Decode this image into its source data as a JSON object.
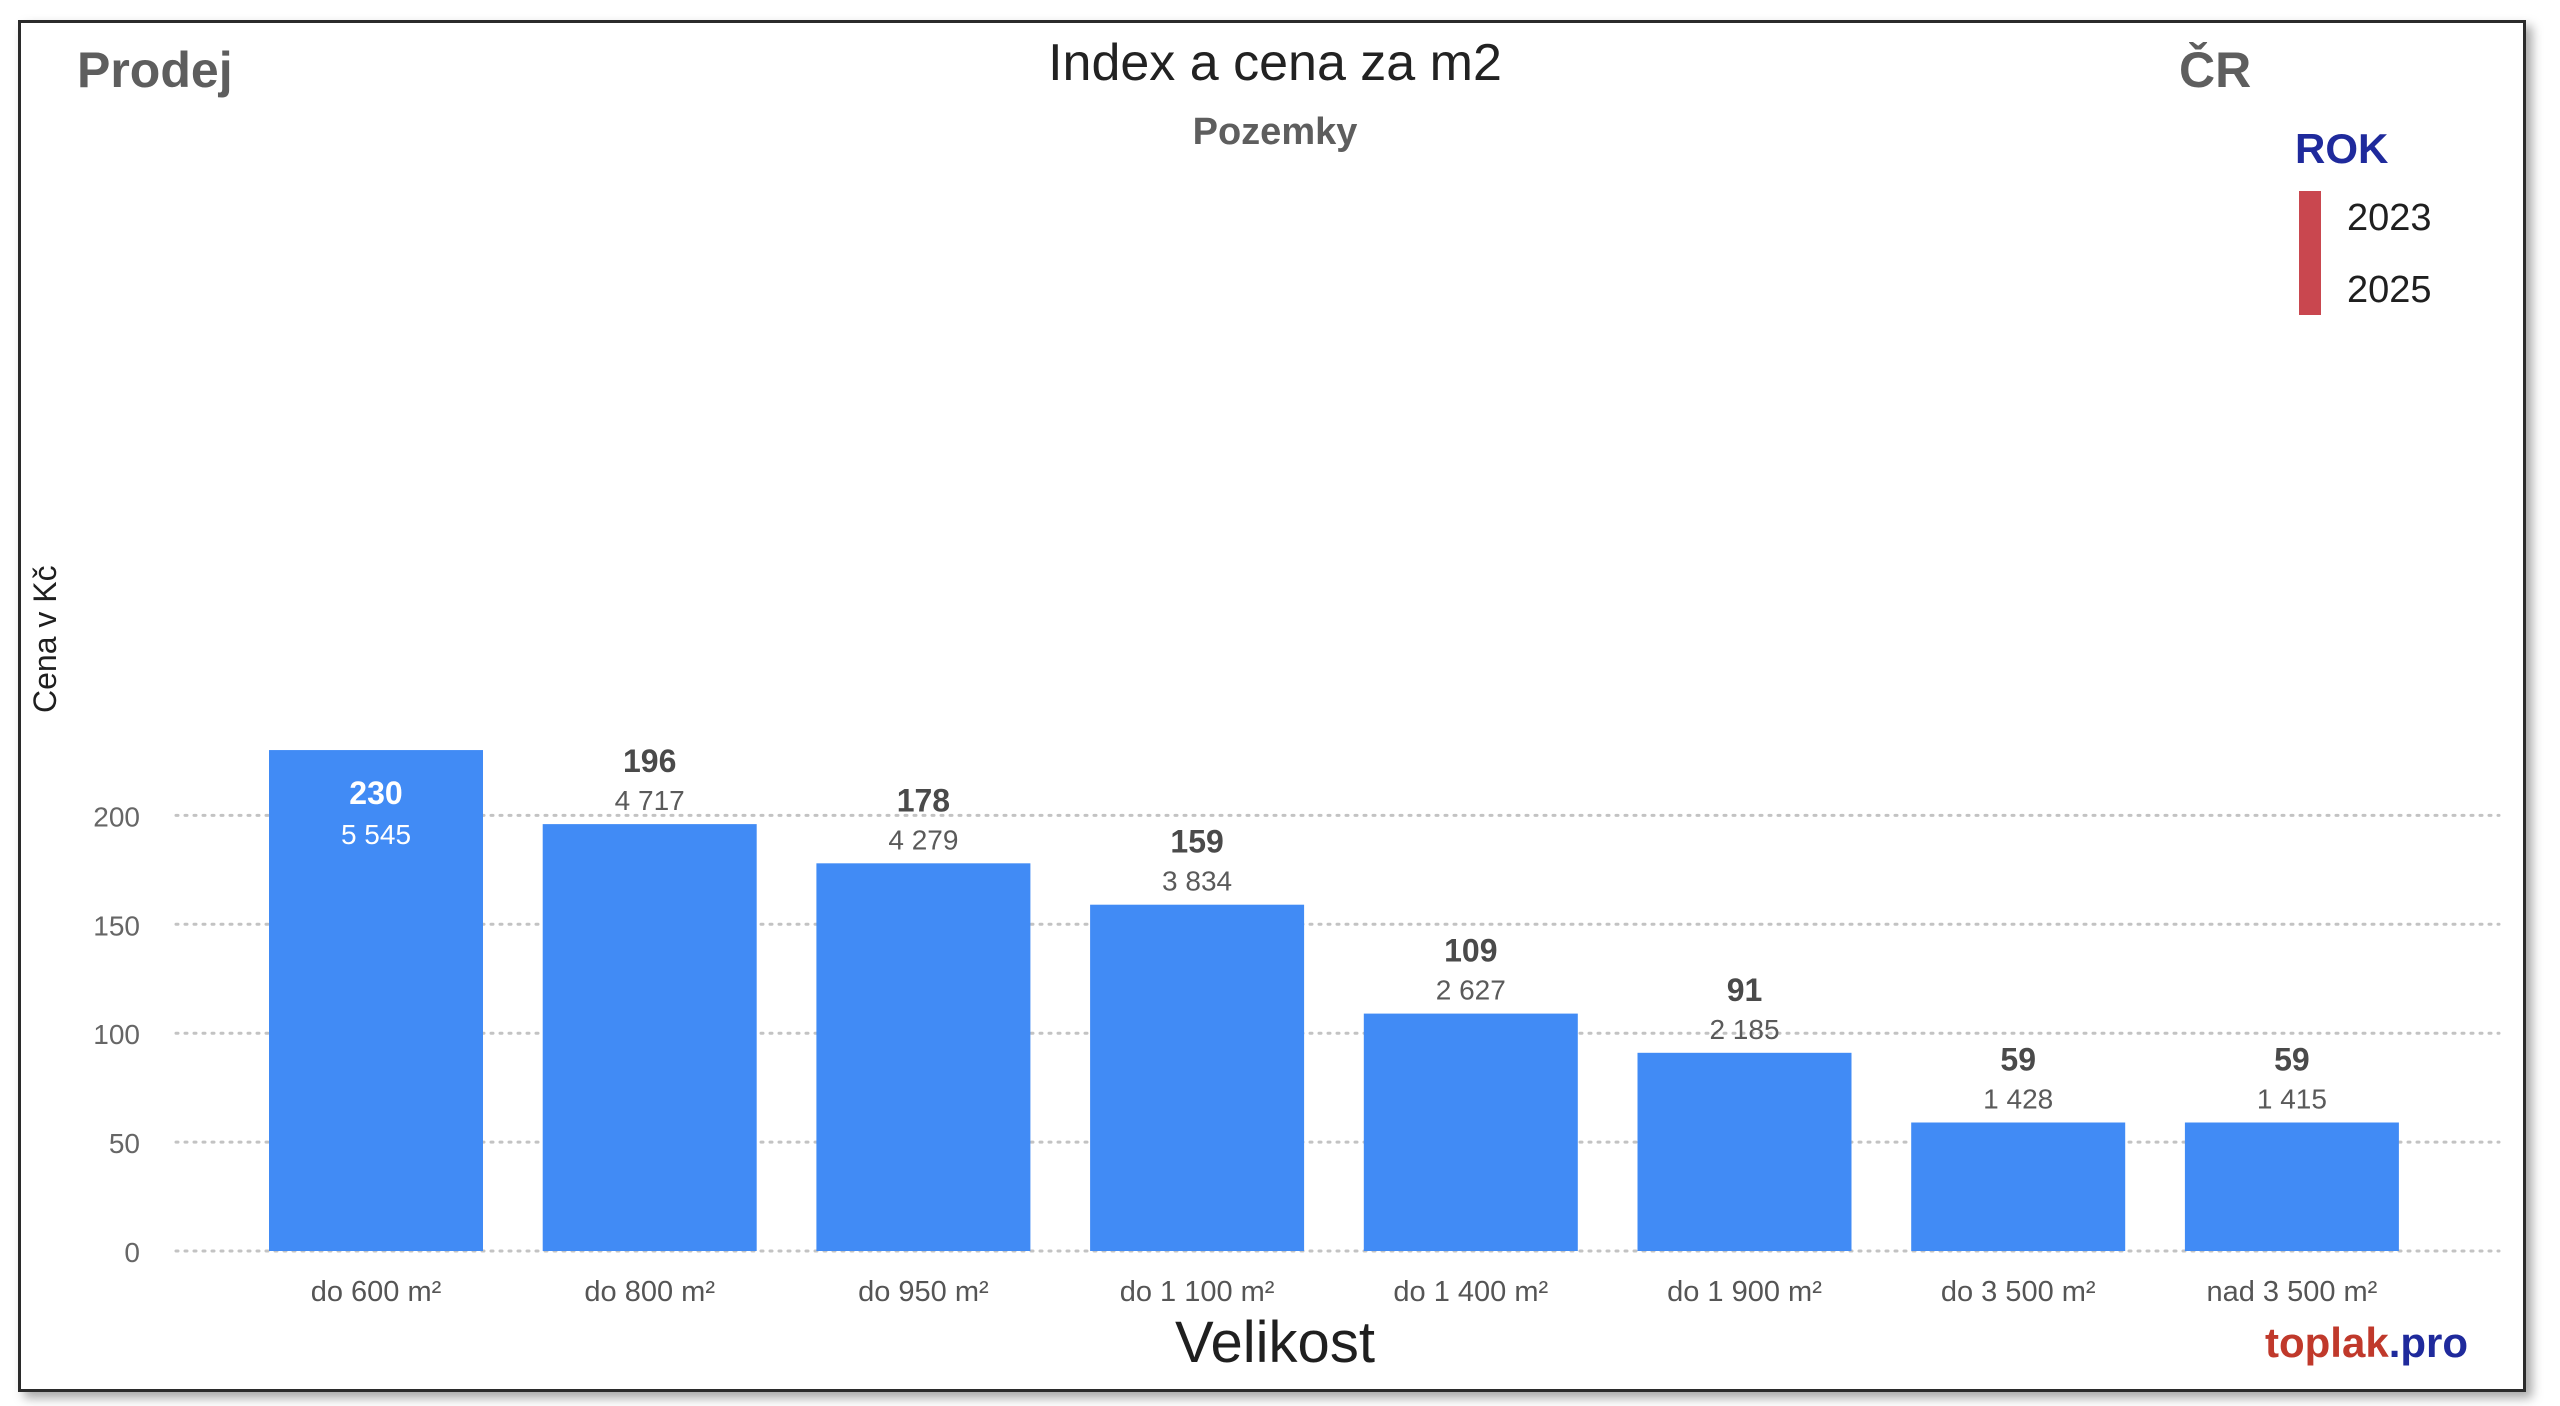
{
  "header": {
    "left_label": "Prodej",
    "right_label": "ČR"
  },
  "brand": {
    "part1": "toplak",
    "part2": ".pro"
  },
  "legend": {
    "title": "ROK",
    "items": [
      "2023",
      "2025"
    ],
    "color": "#c9474f"
  },
  "chart_data": {
    "type": "bar",
    "title": "Index a cena za m2",
    "subtitle": "Pozemky",
    "xlabel": "Velikost",
    "ylabel": "Cena v Kč",
    "ylim": [
      0,
      230
    ],
    "yticks": [
      0,
      50,
      100,
      150,
      200
    ],
    "grid": true,
    "legend_position": "top-right",
    "bar_color": "#418bf5",
    "categories": [
      "do 600 m²",
      "do 800 m²",
      "do 950 m²",
      "do 1 100 m²",
      "do 1 400 m²",
      "do 1 900 m²",
      "do 3 500 m²",
      "nad 3 500 m²"
    ],
    "values": [
      230,
      196,
      178,
      159,
      109,
      91,
      59,
      59
    ],
    "secondary_labels": [
      "5 545",
      "4 717",
      "4 279",
      "3 834",
      "2 627",
      "2 185",
      "1 428",
      "1 415"
    ]
  }
}
